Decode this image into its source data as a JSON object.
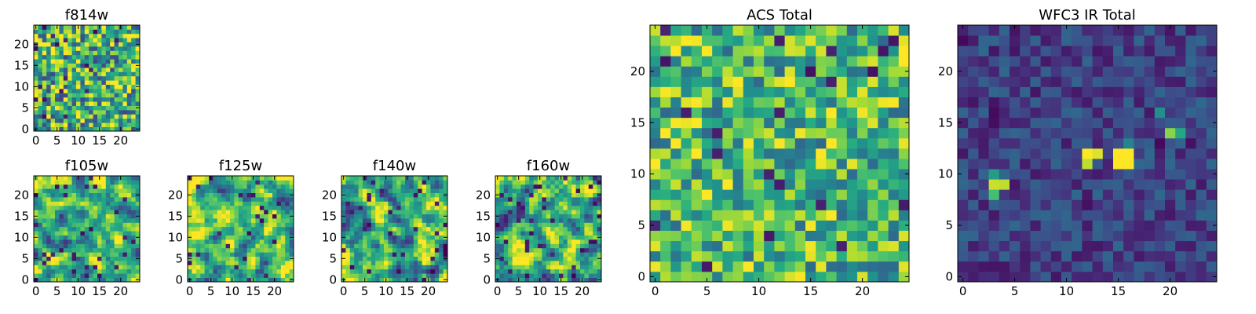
{
  "chart_data": [
    {
      "type": "heatmap",
      "title": "f814w",
      "grid": 25,
      "xlim": [
        0,
        24
      ],
      "ylim": [
        0,
        24
      ],
      "xticks": [
        0,
        5,
        10,
        15,
        20
      ],
      "yticks": [
        0,
        5,
        10,
        15,
        20
      ],
      "xtick_labels": [
        "0",
        "5",
        "10",
        "15",
        "20"
      ],
      "ytick_labels": [
        "0",
        "5",
        "10",
        "15",
        "20"
      ],
      "colormap": "viridis",
      "style": {
        "mean": 0.64,
        "spread": 0.42,
        "smooth": 0
      },
      "seed": 11
    },
    {
      "type": "heatmap",
      "title": "f105w",
      "grid": 25,
      "xlim": [
        0,
        24
      ],
      "ylim": [
        0,
        24
      ],
      "xticks": [
        0,
        5,
        10,
        15,
        20
      ],
      "yticks": [
        0,
        5,
        10,
        15,
        20
      ],
      "xtick_labels": [
        "0",
        "5",
        "10",
        "15",
        "20"
      ],
      "ytick_labels": [
        "0",
        "5",
        "10",
        "15",
        "20"
      ],
      "colormap": "viridis",
      "style": {
        "mean": 0.66,
        "spread": 0.4,
        "smooth": 1
      },
      "seed": 23
    },
    {
      "type": "heatmap",
      "title": "f125w",
      "grid": 25,
      "xlim": [
        0,
        24
      ],
      "ylim": [
        0,
        24
      ],
      "xticks": [
        0,
        5,
        10,
        15,
        20
      ],
      "yticks": [
        0,
        5,
        10,
        15,
        20
      ],
      "xtick_labels": [
        "0",
        "5",
        "10",
        "15",
        "20"
      ],
      "ytick_labels": [
        "0",
        "5",
        "10",
        "15",
        "20"
      ],
      "colormap": "viridis",
      "style": {
        "mean": 0.68,
        "spread": 0.4,
        "smooth": 1
      },
      "seed": 37
    },
    {
      "type": "heatmap",
      "title": "f140w",
      "grid": 25,
      "xlim": [
        0,
        24
      ],
      "ylim": [
        0,
        24
      ],
      "xticks": [
        0,
        5,
        10,
        15,
        20
      ],
      "yticks": [
        0,
        5,
        10,
        15,
        20
      ],
      "xtick_labels": [
        "0",
        "5",
        "10",
        "15",
        "20"
      ],
      "ytick_labels": [
        "0",
        "5",
        "10",
        "15",
        "20"
      ],
      "colormap": "viridis",
      "style": {
        "mean": 0.64,
        "spread": 0.42,
        "smooth": 1
      },
      "seed": 51
    },
    {
      "type": "heatmap",
      "title": "f160w",
      "grid": 25,
      "xlim": [
        0,
        24
      ],
      "ylim": [
        0,
        24
      ],
      "xticks": [
        0,
        5,
        10,
        15,
        20
      ],
      "yticks": [
        0,
        5,
        10,
        15,
        20
      ],
      "xtick_labels": [
        "0",
        "5",
        "10",
        "15",
        "20"
      ],
      "ytick_labels": [
        "0",
        "5",
        "10",
        "15",
        "20"
      ],
      "colormap": "viridis",
      "style": {
        "mean": 0.66,
        "spread": 0.42,
        "smooth": 1
      },
      "seed": 67
    },
    {
      "type": "heatmap",
      "title": "ACS Total",
      "grid": 25,
      "xlim": [
        0,
        24
      ],
      "ylim": [
        0,
        24
      ],
      "xticks": [
        0,
        5,
        10,
        15,
        20
      ],
      "yticks": [
        0,
        5,
        10,
        15,
        20
      ],
      "xtick_labels": [
        "0",
        "5",
        "10",
        "15",
        "20"
      ],
      "ytick_labels": [
        "0",
        "5",
        "10",
        "15",
        "20"
      ],
      "colormap": "viridis",
      "style": {
        "mean": 0.68,
        "spread": 0.34,
        "smooth": 0
      },
      "seed": 83
    },
    {
      "type": "heatmap",
      "title": "WFC3 IR Total",
      "grid": 25,
      "xlim": [
        0,
        24
      ],
      "ylim": [
        0,
        24
      ],
      "xticks": [
        0,
        5,
        10,
        15,
        20
      ],
      "yticks": [
        0,
        5,
        10,
        15,
        20
      ],
      "xtick_labels": [
        "0",
        "5",
        "10",
        "15",
        "20"
      ],
      "ytick_labels": [
        "0",
        "5",
        "10",
        "15",
        "20"
      ],
      "colormap": "viridis",
      "style": {
        "mean": 0.2,
        "spread": 0.14,
        "smooth": 0
      },
      "hotspots": [
        [
          12,
          12,
          1.0
        ],
        [
          13,
          12,
          0.95
        ],
        [
          15,
          12,
          1.0
        ],
        [
          16,
          12,
          1.0
        ],
        [
          15,
          11,
          1.0
        ],
        [
          16,
          11,
          1.0
        ],
        [
          12,
          11,
          0.9
        ],
        [
          3,
          9,
          0.92
        ],
        [
          4,
          9,
          0.9
        ],
        [
          3,
          8,
          0.7
        ],
        [
          20,
          14,
          0.82
        ],
        [
          21,
          14,
          0.6
        ],
        [
          19,
          16,
          0.5
        ],
        [
          3,
          10,
          0.55
        ],
        [
          16,
          13,
          0.45
        ]
      ],
      "seed": 97
    }
  ]
}
